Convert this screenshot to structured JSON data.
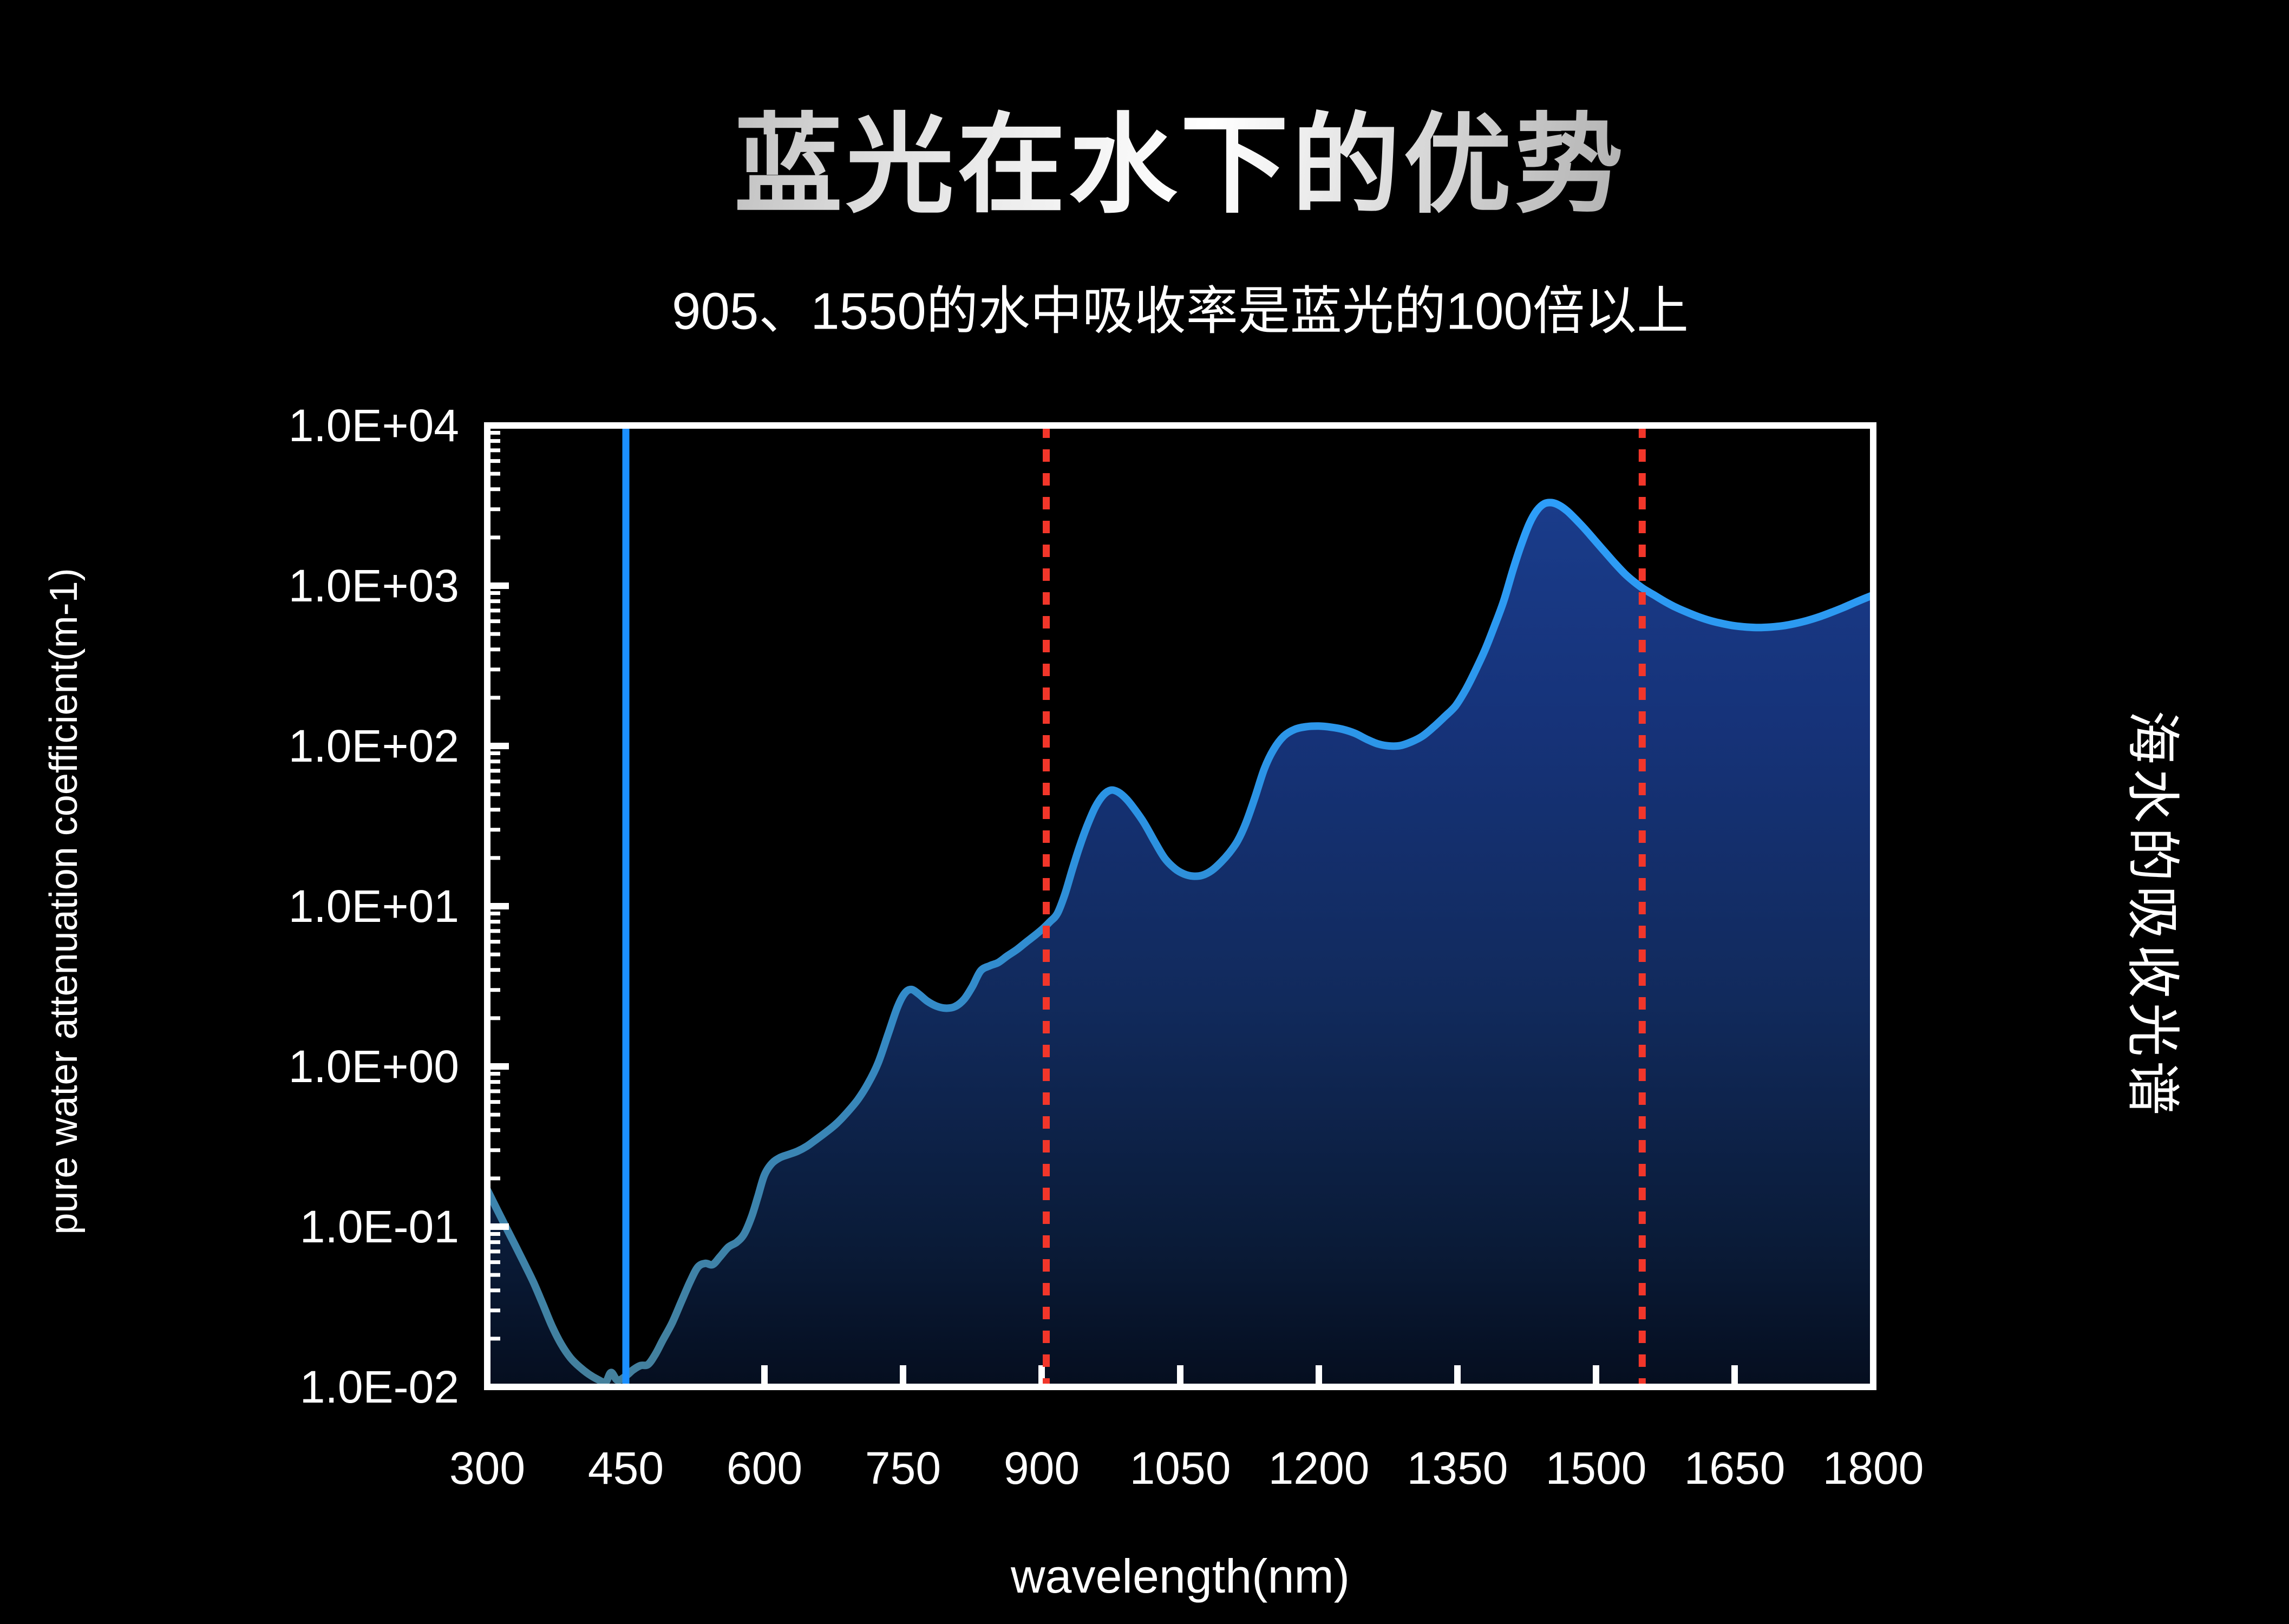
{
  "title": "蓝光在水下的优势",
  "subtitle": "905、1550的水中吸收率是蓝光的100倍以上",
  "right_label": "海水的吸收光谱",
  "colors": {
    "background": "#000000",
    "text": "#FFFFFF",
    "axis": "#FFFFFF",
    "title_gradient": "#8f8f8f 0%, #e2e2e2 30%, #ffffff 52%, #d0d0d0 70%, #858585 100%",
    "blue_marker": "#1B8FFF",
    "red_marker": "#F2362A",
    "curve_gradient": [
      [
        0,
        "#2EA1FF"
      ],
      [
        0.4,
        "#2B93E4"
      ],
      [
        0.75,
        "#3A85B4"
      ],
      [
        1,
        "#44809C"
      ]
    ],
    "area_gradient": [
      [
        0,
        "#1B3F90"
      ],
      [
        0.3,
        "#16337A"
      ],
      [
        0.6,
        "#112A5C"
      ],
      [
        0.85,
        "#0A1B38"
      ],
      [
        1,
        "#050E1F"
      ]
    ]
  },
  "chart_data": {
    "type": "area",
    "title": "",
    "xlabel": "wavelength(nm)",
    "ylabel": "pure water attenuation coefficient(m-1)",
    "x_scale": "linear",
    "y_scale": "log",
    "xlim": [
      300,
      1800
    ],
    "ylog_range": [
      -2,
      4
    ],
    "grid": false,
    "legend": false,
    "x_ticks": [
      300,
      450,
      600,
      750,
      900,
      1050,
      1200,
      1350,
      1500,
      1650,
      1800
    ],
    "x_tick_labels": [
      "300",
      "450",
      "600",
      "750",
      "900",
      "1050",
      "1200",
      "1350",
      "1500",
      "1650",
      "1800"
    ],
    "y_tick_labels": [
      "1.0E+04",
      "1.0E+03",
      "1.0E+02",
      "1.0E+01",
      "1.0E+00",
      "1.0E-01",
      "1.0E-02"
    ],
    "markers": [
      {
        "wavelength": 450,
        "style": "solid",
        "color_key": "blue_marker"
      },
      {
        "wavelength": 905,
        "style": "dotted",
        "color_key": "red_marker"
      },
      {
        "wavelength": 1550,
        "style": "dotted",
        "color_key": "red_marker"
      }
    ],
    "series": [
      {
        "points": [
          [
            300,
            0.17
          ],
          [
            310,
            0.13
          ],
          [
            320,
            0.1
          ],
          [
            330,
            0.077
          ],
          [
            340,
            0.059
          ],
          [
            350,
            0.045
          ],
          [
            360,
            0.033
          ],
          [
            370,
            0.024
          ],
          [
            380,
            0.0185
          ],
          [
            390,
            0.0152
          ],
          [
            400,
            0.0133
          ],
          [
            410,
            0.012
          ],
          [
            420,
            0.0111
          ],
          [
            428,
            0.0107
          ],
          [
            434,
            0.0123
          ],
          [
            441,
            0.011
          ],
          [
            450,
            0.0117
          ],
          [
            458,
            0.0128
          ],
          [
            466,
            0.0136
          ],
          [
            474,
            0.0138
          ],
          [
            482,
            0.016
          ],
          [
            490,
            0.0196
          ],
          [
            500,
            0.025
          ],
          [
            510,
            0.034
          ],
          [
            520,
            0.046
          ],
          [
            528,
            0.056
          ],
          [
            536,
            0.059
          ],
          [
            544,
            0.058
          ],
          [
            552,
            0.065
          ],
          [
            561,
            0.0745
          ],
          [
            570,
            0.08
          ],
          [
            578,
            0.09
          ],
          [
            586,
            0.115
          ],
          [
            593,
            0.155
          ],
          [
            600,
            0.21
          ],
          [
            608,
            0.248
          ],
          [
            617,
            0.27
          ],
          [
            626,
            0.282
          ],
          [
            636,
            0.296
          ],
          [
            646,
            0.318
          ],
          [
            656,
            0.35
          ],
          [
            667,
            0.39
          ],
          [
            678,
            0.44
          ],
          [
            690,
            0.52
          ],
          [
            701,
            0.62
          ],
          [
            712,
            0.78
          ],
          [
            723,
            1.05
          ],
          [
            734,
            1.6
          ],
          [
            744,
            2.35
          ],
          [
            752,
            2.87
          ],
          [
            759,
            3.02
          ],
          [
            767,
            2.83
          ],
          [
            776,
            2.56
          ],
          [
            786,
            2.38
          ],
          [
            796,
            2.31
          ],
          [
            806,
            2.36
          ],
          [
            816,
            2.62
          ],
          [
            825,
            3.15
          ],
          [
            834,
            3.95
          ],
          [
            844,
            4.25
          ],
          [
            853,
            4.45
          ],
          [
            863,
            4.9
          ],
          [
            873,
            5.35
          ],
          [
            883,
            5.95
          ],
          [
            893,
            6.6
          ],
          [
            902,
            7.3
          ],
          [
            909,
            8.0
          ],
          [
            917,
            9.0
          ],
          [
            925,
            11.8
          ],
          [
            933,
            16.8
          ],
          [
            941,
            23.5
          ],
          [
            949,
            31.5
          ],
          [
            958,
            41.5
          ],
          [
            967,
            49.5
          ],
          [
            975,
            53.0
          ],
          [
            983,
            51.5
          ],
          [
            992,
            46.5
          ],
          [
            1001,
            40.0
          ],
          [
            1011,
            33.0
          ],
          [
            1022,
            25.5
          ],
          [
            1033,
            20.0
          ],
          [
            1044,
            17.2
          ],
          [
            1054,
            15.9
          ],
          [
            1064,
            15.4
          ],
          [
            1074,
            15.6
          ],
          [
            1084,
            16.7
          ],
          [
            1094,
            18.8
          ],
          [
            1103,
            21.5
          ],
          [
            1112,
            25.5
          ],
          [
            1121,
            33.0
          ],
          [
            1131,
            48.0
          ],
          [
            1141,
            72.0
          ],
          [
            1151,
            95.0
          ],
          [
            1162,
            115
          ],
          [
            1174,
            127
          ],
          [
            1187,
            132
          ],
          [
            1200,
            133
          ],
          [
            1213,
            131
          ],
          [
            1226,
            127
          ],
          [
            1239,
            120
          ],
          [
            1252,
            110
          ],
          [
            1264,
            103
          ],
          [
            1276,
            100
          ],
          [
            1288,
            100.5
          ],
          [
            1300,
            106
          ],
          [
            1312,
            115
          ],
          [
            1324,
            131
          ],
          [
            1336,
            152
          ],
          [
            1348,
            178
          ],
          [
            1359,
            225
          ],
          [
            1370,
            300
          ],
          [
            1380,
            400
          ],
          [
            1390,
            560
          ],
          [
            1400,
            800
          ],
          [
            1410,
            1250
          ],
          [
            1419,
            1800
          ],
          [
            1428,
            2450
          ],
          [
            1436,
            2950
          ],
          [
            1444,
            3250
          ],
          [
            1452,
            3300
          ],
          [
            1460,
            3180
          ],
          [
            1469,
            2920
          ],
          [
            1478,
            2600
          ],
          [
            1488,
            2260
          ],
          [
            1498,
            1940
          ],
          [
            1509,
            1640
          ],
          [
            1520,
            1390
          ],
          [
            1531,
            1190
          ],
          [
            1541,
            1060
          ],
          [
            1551,
            960
          ],
          [
            1562,
            880
          ],
          [
            1574,
            800
          ],
          [
            1586,
            735
          ],
          [
            1598,
            685
          ],
          [
            1611,
            640
          ],
          [
            1624,
            605
          ],
          [
            1637,
            580
          ],
          [
            1650,
            562
          ],
          [
            1663,
            552
          ],
          [
            1676,
            548
          ],
          [
            1689,
            552
          ],
          [
            1702,
            562
          ],
          [
            1715,
            580
          ],
          [
            1728,
            605
          ],
          [
            1741,
            638
          ],
          [
            1754,
            680
          ],
          [
            1767,
            728
          ],
          [
            1779,
            780
          ],
          [
            1790,
            830
          ],
          [
            1800,
            875
          ]
        ]
      }
    ]
  }
}
